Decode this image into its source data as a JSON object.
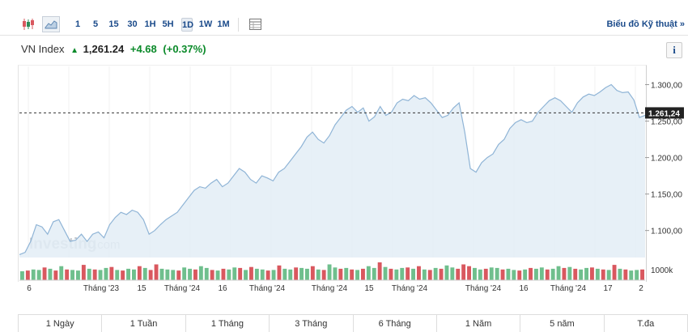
{
  "toolbar": {
    "timeframes": [
      "1",
      "5",
      "15",
      "30",
      "1H",
      "5H",
      "1D",
      "1W",
      "1M"
    ],
    "active_timeframe": "1D",
    "advanced_chart_link": "Biểu đồ Kỹ thuật »"
  },
  "quote": {
    "name": "VN Index",
    "last": "1,261.24",
    "change": "+4.68",
    "change_pct": "(+0.37%)",
    "up_color": "#0b8a2a"
  },
  "info_label": "i",
  "watermark": {
    "brand": "Investing",
    "suffix": ".com"
  },
  "periods": [
    "1 Ngày",
    "1 Tuần",
    "1 Tháng",
    "3 Tháng",
    "6 Tháng",
    "1 Năm",
    "5 năm",
    "T.đa"
  ],
  "chart_data": {
    "type": "area",
    "y_ticks": [
      "1.100,00",
      "1.150,00",
      "1.200,00",
      "1.250,00",
      "1.300,00"
    ],
    "y_tick_values": [
      1100,
      1150,
      1200,
      1250,
      1300
    ],
    "ylim": [
      1063,
      1325
    ],
    "current_value": 1261.24,
    "current_label": "1.261,24",
    "volume_label": "1000k",
    "x_tick_labels": [
      "6",
      "Tháng '23",
      "15",
      "Tháng '24",
      "16",
      "Tháng '24",
      "Tháng '24",
      "15",
      "Tháng '24",
      "Tháng '24",
      "16",
      "Tháng '24",
      "17",
      "2"
    ],
    "values": [
      1067,
      1070,
      1085,
      1108,
      1105,
      1095,
      1112,
      1115,
      1100,
      1085,
      1087,
      1095,
      1085,
      1095,
      1098,
      1090,
      1108,
      1118,
      1125,
      1122,
      1128,
      1125,
      1115,
      1095,
      1100,
      1108,
      1115,
      1120,
      1125,
      1135,
      1145,
      1155,
      1160,
      1158,
      1165,
      1170,
      1160,
      1165,
      1175,
      1185,
      1180,
      1170,
      1165,
      1175,
      1172,
      1168,
      1180,
      1185,
      1195,
      1205,
      1215,
      1228,
      1235,
      1225,
      1220,
      1230,
      1245,
      1255,
      1265,
      1270,
      1262,
      1268,
      1250,
      1256,
      1270,
      1258,
      1262,
      1275,
      1280,
      1278,
      1285,
      1280,
      1282,
      1275,
      1265,
      1255,
      1258,
      1268,
      1275,
      1235,
      1185,
      1180,
      1193,
      1200,
      1205,
      1218,
      1225,
      1240,
      1248,
      1252,
      1248,
      1250,
      1262,
      1270,
      1278,
      1282,
      1278,
      1270,
      1262,
      1275,
      1283,
      1287,
      1285,
      1290,
      1296,
      1300,
      1292,
      1289,
      1290,
      1279,
      1255,
      1258
    ],
    "volume": [
      35,
      38,
      42,
      40,
      50,
      45,
      38,
      55,
      42,
      40,
      38,
      60,
      45,
      42,
      40,
      48,
      52,
      40,
      38,
      45,
      42,
      55,
      48,
      40,
      62,
      45,
      42,
      40,
      38,
      50,
      45,
      42,
      55,
      48,
      40,
      38,
      45,
      42,
      50,
      48,
      40,
      52,
      45,
      42,
      38,
      40,
      58,
      45,
      42,
      50,
      48,
      45,
      55,
      42,
      40,
      62,
      50,
      45,
      48,
      42,
      40,
      45,
      55,
      48,
      70,
      52,
      45,
      42,
      48,
      50,
      45,
      55,
      42,
      40,
      48,
      45,
      58,
      50,
      45,
      62,
      55,
      48,
      42,
      45,
      50,
      48,
      42,
      45,
      40,
      38,
      42,
      48,
      45,
      50,
      42,
      45,
      55,
      48,
      52,
      45,
      42,
      48,
      50,
      45,
      42,
      40,
      60,
      45,
      42,
      38,
      40,
      42
    ],
    "volume_up": [
      1,
      0,
      1,
      1,
      0,
      1,
      0,
      1,
      0,
      1,
      1,
      0,
      1,
      0,
      1,
      1,
      0,
      1,
      0,
      1,
      1,
      0,
      1,
      0,
      0,
      1,
      1,
      1,
      0,
      1,
      1,
      0,
      1,
      1,
      0,
      1,
      0,
      1,
      1,
      0,
      1,
      0,
      1,
      1,
      0,
      1,
      0,
      1,
      1,
      0,
      1,
      1,
      0,
      1,
      0,
      1,
      1,
      0,
      1,
      0,
      1,
      0,
      1,
      1,
      0,
      1,
      0,
      1,
      1,
      0,
      1,
      0,
      1,
      0,
      1,
      0,
      1,
      1,
      0,
      0,
      0,
      1,
      1,
      0,
      1,
      1,
      0,
      1,
      1,
      0,
      1,
      0,
      1,
      1,
      0,
      1,
      1,
      0,
      1,
      0,
      1,
      1,
      0,
      1,
      0,
      1,
      0,
      1,
      0,
      1,
      1,
      0
    ],
    "line_color": "#8fb4d6",
    "fill_color": "#e3edf6",
    "vol_up_color": "#6fbf8d",
    "vol_down_color": "#d9585f",
    "reference_line": "dashed"
  }
}
